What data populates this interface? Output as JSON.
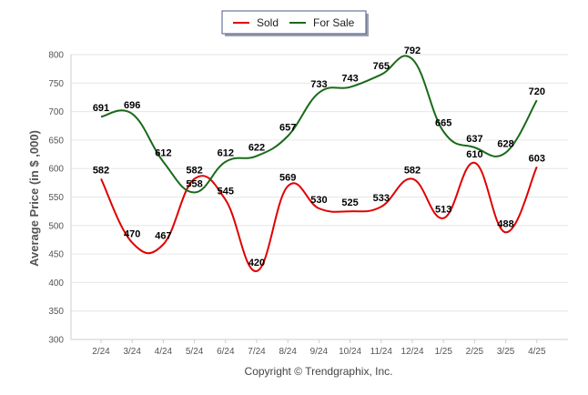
{
  "chart_data": {
    "type": "line",
    "categories": [
      "2/24",
      "3/24",
      "4/24",
      "5/24",
      "6/24",
      "7/24",
      "8/24",
      "9/24",
      "10/24",
      "11/24",
      "12/24",
      "1/25",
      "2/25",
      "3/25",
      "4/25"
    ],
    "series": [
      {
        "name": "Sold",
        "color": "#e00000",
        "values": [
          582,
          470,
          467,
          582,
          545,
          420,
          569,
          530,
          525,
          533,
          582,
          513,
          610,
          488,
          603
        ]
      },
      {
        "name": "For Sale",
        "color": "#1a6a1a",
        "values": [
          691,
          696,
          612,
          558,
          612,
          622,
          657,
          733,
          743,
          765,
          792,
          665,
          637,
          628,
          720
        ]
      }
    ],
    "ylabel": "Average Price (in $ ,000)",
    "ylim": [
      300,
      800
    ],
    "yticks": [
      300,
      350,
      400,
      450,
      500,
      550,
      600,
      650,
      700,
      750,
      800
    ],
    "grid": true,
    "legend_position": "top-center",
    "footer": "Copyright © Trendgraphix, Inc."
  }
}
